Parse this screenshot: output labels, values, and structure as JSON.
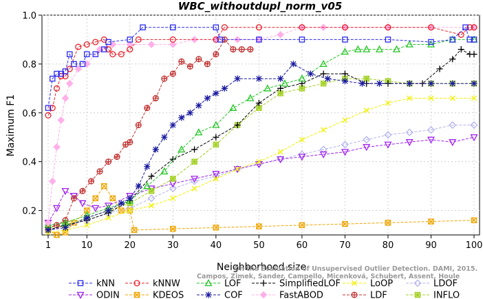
{
  "chart_data": {
    "type": "line",
    "title": "WBC_withoutdupl_norm_v05",
    "xlabel": "Neighborhood size",
    "ylabel": "Maximum F1",
    "xlim": [
      1,
      100
    ],
    "ylim": [
      0.1,
      1.0
    ],
    "x_ticks": [
      1,
      10,
      20,
      30,
      40,
      50,
      60,
      70,
      80,
      90,
      100
    ],
    "y_ticks": [
      0.2,
      0.4,
      0.6,
      0.8,
      1.0
    ],
    "y_tick_labels": [
      "0.2",
      "0.4",
      "0.6",
      "0.8",
      "1.0"
    ],
    "grid": true,
    "legend_position": "bottom",
    "watermark": [
      "Campos, Zimek, Sander, Campello, Micenková, Schubert, Assent, Houle",
      "On the Evaluation of Unsupervised Outlier Detection. DAMI, 2015."
    ],
    "series": [
      {
        "name": "kNN",
        "color": "#2a2af0",
        "marker": "square",
        "points": [
          [
            1,
            0.62
          ],
          [
            2,
            0.74
          ],
          [
            3,
            0.76
          ],
          [
            4,
            0.76
          ],
          [
            5,
            0.77
          ],
          [
            6,
            0.84
          ],
          [
            7,
            0.8
          ],
          [
            9,
            0.8
          ],
          [
            10,
            0.84
          ],
          [
            12,
            0.84
          ],
          [
            14,
            0.86
          ],
          [
            15,
            0.89
          ],
          [
            20,
            0.9
          ],
          [
            23,
            0.95
          ],
          [
            30,
            0.95
          ],
          [
            40,
            0.95
          ],
          [
            41,
            0.9
          ],
          [
            50,
            0.9
          ],
          [
            60,
            0.9
          ],
          [
            70,
            0.9
          ],
          [
            80,
            0.9
          ],
          [
            90,
            0.89
          ],
          [
            95,
            0.9
          ],
          [
            98,
            0.95
          ],
          [
            99,
            0.9
          ],
          [
            100,
            0.9
          ]
        ]
      },
      {
        "name": "kNNW",
        "color": "#e8202a",
        "marker": "circle",
        "points": [
          [
            1,
            0.59
          ],
          [
            2,
            0.62
          ],
          [
            3,
            0.7
          ],
          [
            4,
            0.75
          ],
          [
            5,
            0.75
          ],
          [
            6,
            0.78
          ],
          [
            8,
            0.87
          ],
          [
            10,
            0.88
          ],
          [
            12,
            0.89
          ],
          [
            14,
            0.9
          ],
          [
            15,
            0.86
          ],
          [
            16,
            0.84
          ],
          [
            18,
            0.84
          ],
          [
            20,
            0.86
          ],
          [
            22,
            0.9
          ],
          [
            30,
            0.9
          ],
          [
            40,
            0.9
          ],
          [
            42,
            0.95
          ],
          [
            50,
            0.95
          ],
          [
            60,
            0.95
          ],
          [
            70,
            0.95
          ],
          [
            80,
            0.95
          ],
          [
            90,
            0.95
          ],
          [
            97,
            0.92
          ],
          [
            99,
            0.95
          ],
          [
            100,
            0.95
          ]
        ]
      },
      {
        "name": "LOF",
        "color": "#22c622",
        "marker": "triangle",
        "points": [
          [
            1,
            0.14
          ],
          [
            5,
            0.15
          ],
          [
            10,
            0.18
          ],
          [
            15,
            0.21
          ],
          [
            20,
            0.24
          ],
          [
            24,
            0.3
          ],
          [
            28,
            0.36
          ],
          [
            32,
            0.45
          ],
          [
            36,
            0.52
          ],
          [
            40,
            0.55
          ],
          [
            44,
            0.62
          ],
          [
            48,
            0.66
          ],
          [
            52,
            0.7
          ],
          [
            56,
            0.72
          ],
          [
            60,
            0.74
          ],
          [
            65,
            0.8
          ],
          [
            70,
            0.85
          ],
          [
            73,
            0.86
          ],
          [
            75,
            0.86
          ],
          [
            78,
            0.86
          ],
          [
            82,
            0.86
          ],
          [
            85,
            0.88
          ],
          [
            90,
            0.88
          ],
          [
            95,
            0.9
          ],
          [
            100,
            0.9
          ]
        ]
      },
      {
        "name": "SimplifiedLOF",
        "color": "#000000",
        "marker": "plus",
        "points": [
          [
            1,
            0.12
          ],
          [
            5,
            0.14
          ],
          [
            10,
            0.16
          ],
          [
            15,
            0.19
          ],
          [
            20,
            0.24
          ],
          [
            25,
            0.34
          ],
          [
            30,
            0.41
          ],
          [
            35,
            0.45
          ],
          [
            40,
            0.5
          ],
          [
            45,
            0.55
          ],
          [
            50,
            0.64
          ],
          [
            55,
            0.7
          ],
          [
            60,
            0.72
          ],
          [
            65,
            0.76
          ],
          [
            70,
            0.76
          ],
          [
            75,
            0.72
          ],
          [
            80,
            0.72
          ],
          [
            85,
            0.72
          ],
          [
            88,
            0.72
          ],
          [
            92,
            0.78
          ],
          [
            95,
            0.82
          ],
          [
            97,
            0.86
          ],
          [
            99,
            0.84
          ],
          [
            100,
            0.84
          ]
        ]
      },
      {
        "name": "LoOP",
        "color": "#f0f000",
        "marker": "x",
        "points": [
          [
            1,
            0.11
          ],
          [
            5,
            0.12
          ],
          [
            10,
            0.14
          ],
          [
            15,
            0.17
          ],
          [
            20,
            0.2
          ],
          [
            25,
            0.22
          ],
          [
            30,
            0.25
          ],
          [
            35,
            0.29
          ],
          [
            40,
            0.33
          ],
          [
            45,
            0.37
          ],
          [
            50,
            0.4
          ],
          [
            55,
            0.44
          ],
          [
            60,
            0.49
          ],
          [
            65,
            0.53
          ],
          [
            70,
            0.57
          ],
          [
            75,
            0.61
          ],
          [
            80,
            0.64
          ],
          [
            85,
            0.66
          ],
          [
            90,
            0.66
          ],
          [
            95,
            0.66
          ],
          [
            100,
            0.66
          ]
        ]
      },
      {
        "name": "LDOF",
        "color": "#b4b4f0",
        "marker": "diamond",
        "points": [
          [
            1,
            0.14
          ],
          [
            5,
            0.14
          ],
          [
            10,
            0.16
          ],
          [
            15,
            0.19
          ],
          [
            20,
            0.21
          ],
          [
            25,
            0.25
          ],
          [
            30,
            0.29
          ],
          [
            35,
            0.32
          ],
          [
            40,
            0.34
          ],
          [
            45,
            0.37
          ],
          [
            50,
            0.39
          ],
          [
            55,
            0.41
          ],
          [
            60,
            0.43
          ],
          [
            65,
            0.45
          ],
          [
            70,
            0.47
          ],
          [
            75,
            0.49
          ],
          [
            80,
            0.51
          ],
          [
            85,
            0.52
          ],
          [
            90,
            0.53
          ],
          [
            95,
            0.55
          ],
          [
            100,
            0.55
          ]
        ]
      },
      {
        "name": "ODIN",
        "color": "#a020f0",
        "marker": "triangle-down",
        "points": [
          [
            1,
            0.15
          ],
          [
            3,
            0.21
          ],
          [
            5,
            0.28
          ],
          [
            7,
            0.26
          ],
          [
            9,
            0.23
          ],
          [
            12,
            0.21
          ],
          [
            15,
            0.22
          ],
          [
            20,
            0.26
          ],
          [
            25,
            0.29
          ],
          [
            30,
            0.31
          ],
          [
            35,
            0.33
          ],
          [
            40,
            0.35
          ],
          [
            45,
            0.37
          ],
          [
            50,
            0.39
          ],
          [
            55,
            0.41
          ],
          [
            60,
            0.42
          ],
          [
            65,
            0.43
          ],
          [
            70,
            0.44
          ],
          [
            75,
            0.46
          ],
          [
            80,
            0.47
          ],
          [
            85,
            0.48
          ],
          [
            90,
            0.49
          ],
          [
            95,
            0.48
          ],
          [
            100,
            0.5
          ]
        ]
      },
      {
        "name": "KDEOS",
        "color": "#f0a500",
        "marker": "square-x",
        "points": [
          [
            1,
            0.12
          ],
          [
            3,
            0.1
          ],
          [
            5,
            0.11
          ],
          [
            7,
            0.15
          ],
          [
            10,
            0.2
          ],
          [
            12,
            0.25
          ],
          [
            14,
            0.3
          ],
          [
            16,
            0.25
          ],
          [
            18,
            0.2
          ],
          [
            20,
            0.2
          ],
          [
            21,
            0.12
          ],
          [
            30,
            0.125
          ],
          [
            40,
            0.13
          ],
          [
            50,
            0.135
          ],
          [
            60,
            0.14
          ],
          [
            70,
            0.145
          ],
          [
            80,
            0.15
          ],
          [
            90,
            0.155
          ],
          [
            100,
            0.16
          ]
        ]
      },
      {
        "name": "COF",
        "color": "#1a1aa0",
        "marker": "star",
        "points": [
          [
            1,
            0.12
          ],
          [
            5,
            0.13
          ],
          [
            10,
            0.17
          ],
          [
            15,
            0.2
          ],
          [
            18,
            0.23
          ],
          [
            20,
            0.25
          ],
          [
            22,
            0.3
          ],
          [
            24,
            0.38
          ],
          [
            26,
            0.45
          ],
          [
            28,
            0.5
          ],
          [
            30,
            0.55
          ],
          [
            32,
            0.58
          ],
          [
            34,
            0.6
          ],
          [
            36,
            0.63
          ],
          [
            38,
            0.66
          ],
          [
            40,
            0.68
          ],
          [
            42,
            0.7
          ],
          [
            45,
            0.74
          ],
          [
            50,
            0.74
          ],
          [
            55,
            0.74
          ],
          [
            58,
            0.8
          ],
          [
            62,
            0.76
          ],
          [
            66,
            0.74
          ],
          [
            70,
            0.73
          ],
          [
            74,
            0.72
          ],
          [
            78,
            0.72
          ],
          [
            85,
            0.72
          ],
          [
            90,
            0.72
          ],
          [
            95,
            0.72
          ],
          [
            100,
            0.72
          ]
        ]
      },
      {
        "name": "FastABOD",
        "color": "#ffb0e8",
        "marker": "diamond-filled",
        "points": [
          [
            1,
            0.15
          ],
          [
            2,
            0.32
          ],
          [
            3,
            0.46
          ],
          [
            4,
            0.57
          ],
          [
            5,
            0.66
          ],
          [
            6,
            0.72
          ],
          [
            8,
            0.78
          ],
          [
            10,
            0.8
          ],
          [
            13,
            0.86
          ],
          [
            16,
            0.88
          ],
          [
            20,
            0.88
          ],
          [
            25,
            0.88
          ],
          [
            30,
            0.88
          ],
          [
            35,
            0.9
          ],
          [
            40,
            0.9
          ],
          [
            45,
            0.9
          ],
          [
            50,
            0.9
          ],
          [
            55,
            0.92
          ],
          [
            60,
            0.95
          ],
          [
            65,
            0.95
          ],
          [
            70,
            0.95
          ],
          [
            80,
            0.95
          ],
          [
            90,
            0.95
          ],
          [
            100,
            0.95
          ]
        ]
      },
      {
        "name": "LDF",
        "color": "#c03030",
        "marker": "circle-plus",
        "points": [
          [
            1,
            0.13
          ],
          [
            3,
            0.14
          ],
          [
            5,
            0.16
          ],
          [
            7,
            0.25
          ],
          [
            9,
            0.28
          ],
          [
            11,
            0.32
          ],
          [
            13,
            0.36
          ],
          [
            15,
            0.4
          ],
          [
            17,
            0.42
          ],
          [
            19,
            0.47
          ],
          [
            20,
            0.48
          ],
          [
            22,
            0.55
          ],
          [
            24,
            0.62
          ],
          [
            26,
            0.66
          ],
          [
            28,
            0.74
          ],
          [
            30,
            0.76
          ],
          [
            32,
            0.81
          ],
          [
            34,
            0.79
          ],
          [
            36,
            0.82
          ],
          [
            38,
            0.8
          ],
          [
            40,
            0.84
          ],
          [
            42,
            0.9
          ],
          [
            44,
            0.86
          ],
          [
            46,
            0.86
          ],
          [
            48,
            0.86
          ]
        ]
      },
      {
        "name": "INFLO",
        "color": "#a0d020",
        "marker": "square-star",
        "points": [
          [
            1,
            0.13
          ],
          [
            5,
            0.14
          ],
          [
            10,
            0.17
          ],
          [
            15,
            0.2
          ],
          [
            20,
            0.23
          ],
          [
            25,
            0.28
          ],
          [
            30,
            0.33
          ],
          [
            35,
            0.4
          ],
          [
            40,
            0.47
          ],
          [
            45,
            0.55
          ],
          [
            50,
            0.62
          ],
          [
            55,
            0.68
          ],
          [
            60,
            0.7
          ],
          [
            65,
            0.72
          ],
          [
            70,
            0.74
          ],
          [
            75,
            0.74
          ],
          [
            80,
            0.73
          ],
          [
            85,
            0.72
          ],
          [
            90,
            0.72
          ],
          [
            95,
            0.72
          ],
          [
            100,
            0.72
          ]
        ]
      }
    ]
  }
}
